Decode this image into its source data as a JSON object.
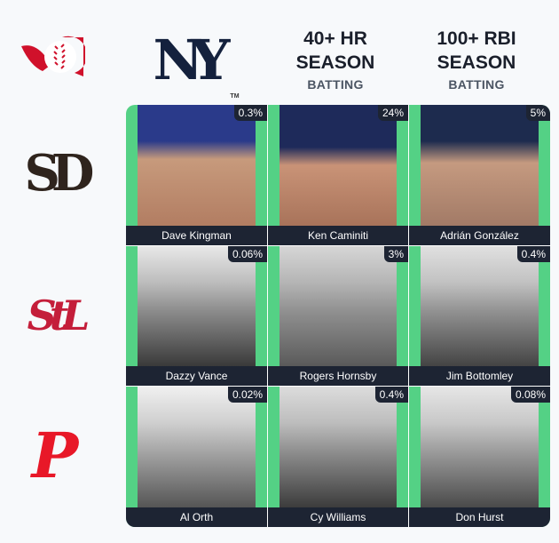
{
  "corner_logo": {
    "icon": "immaculate-grid-baseball-flag-icon",
    "color": "#d0112b"
  },
  "columns": [
    {
      "type": "team-logo",
      "team": "New York Yankees",
      "logo_text": "NY",
      "tm": "TM",
      "color": "#14213d"
    },
    {
      "title": "40+ HR SEASON",
      "subtitle": "BATTING"
    },
    {
      "title": "100+ RBI SEASON",
      "subtitle": "BATTING"
    }
  ],
  "rows": [
    {
      "team": "San Diego Padres",
      "logo_text": "SD",
      "color": "#2f241d"
    },
    {
      "team": "St. Louis Cardinals",
      "logo_text": "StL",
      "color": "#c41e3a"
    },
    {
      "team": "Philadelphia Phillies",
      "logo_text": "P",
      "color": "#e81828"
    }
  ],
  "colors": {
    "correct": "#54d185",
    "label_bg": "#1d2433"
  },
  "cells": [
    [
      {
        "name": "Dave Kingman",
        "pct": "0.3%"
      },
      {
        "name": "Ken Caminiti",
        "pct": "24%"
      },
      {
        "name": "Adrián González",
        "pct": "5%"
      }
    ],
    [
      {
        "name": "Dazzy Vance",
        "pct": "0.06%"
      },
      {
        "name": "Rogers Hornsby",
        "pct": "3%"
      },
      {
        "name": "Jim Bottomley",
        "pct": "0.4%"
      }
    ],
    [
      {
        "name": "Al Orth",
        "pct": "0.02%"
      },
      {
        "name": "Cy Williams",
        "pct": "0.4%"
      },
      {
        "name": "Don Hurst",
        "pct": "0.08%"
      }
    ]
  ]
}
